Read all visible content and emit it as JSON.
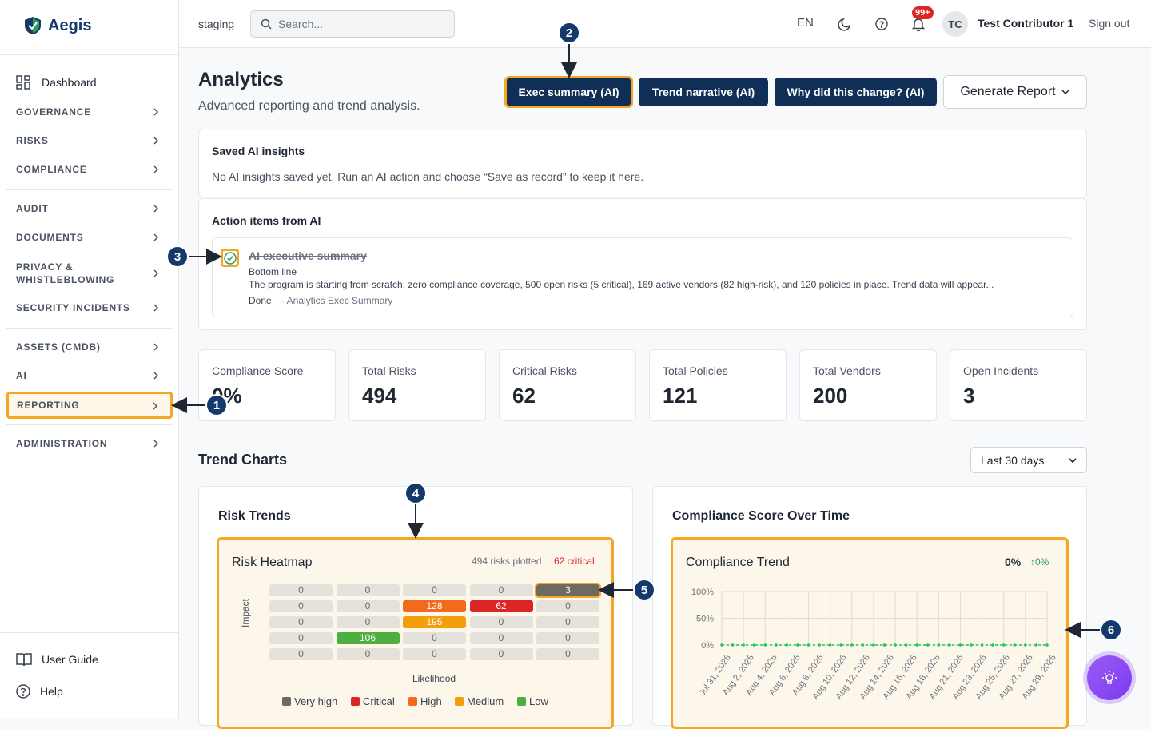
{
  "app": {
    "name": "Aegis"
  },
  "sidebar": {
    "dashboard": "Dashboard",
    "items": [
      "GOVERNANCE",
      "RISKS",
      "COMPLIANCE",
      "AUDIT",
      "DOCUMENTS",
      "PRIVACY &",
      "WHISTLEBLOWING",
      "SECURITY INCIDENTS",
      "ASSETS (CMDB)",
      "AI",
      "REPORTING",
      "ADMINISTRATION"
    ],
    "footer": {
      "guide": "User Guide",
      "help": "Help"
    }
  },
  "topbar": {
    "env": "staging",
    "search_placeholder": "Search...",
    "lang": "EN",
    "notif_count": "99+",
    "initials": "TC",
    "user": "Test Contributor 1",
    "signout": "Sign out"
  },
  "page": {
    "title": "Analytics",
    "subtitle": "Advanced reporting and trend analysis.",
    "buttons": {
      "exec": "Exec summary (AI)",
      "trend": "Trend narrative (AI)",
      "why": "Why did this change? (AI)",
      "generate": "Generate Report"
    }
  },
  "saved": {
    "title": "Saved AI insights",
    "empty": "No AI insights saved yet. Run an AI action and choose “Save as record” to keep it here."
  },
  "actions": {
    "title": "Action items from AI",
    "item_title": "AI executive summary",
    "item_sub": "Bottom line",
    "item_body": "The program is starting from scratch: zero compliance coverage, 500 open risks (5 critical), 169 active vendors (82 high-risk), and 120 policies in place. Trend data will appear...",
    "status": "Done",
    "source": "· Analytics Exec Summary"
  },
  "stats": [
    {
      "label": "Compliance Score",
      "value": "0%"
    },
    {
      "label": "Total Risks",
      "value": "494"
    },
    {
      "label": "Critical Risks",
      "value": "62"
    },
    {
      "label": "Total Policies",
      "value": "121"
    },
    {
      "label": "Total Vendors",
      "value": "200"
    },
    {
      "label": "Open Incidents",
      "value": "3"
    }
  ],
  "trends": {
    "title": "Trend Charts",
    "range": "Last 30 days"
  },
  "risk_panel": {
    "title": "Risk Trends",
    "heatmap_title": "Risk Heatmap",
    "plotted": "494 risks plotted",
    "critical": "62 critical",
    "ylabel": "Impact",
    "xlabel": "Likelihood",
    "legend": [
      "Very high",
      "Critical",
      "High",
      "Medium",
      "Low"
    ],
    "colors": {
      "very_high": "#6f6a60",
      "critical": "#dc2626",
      "high": "#f26b1d",
      "medium": "#f59e0b",
      "low": "#4caf3f"
    }
  },
  "compliance_panel": {
    "title": "Compliance Score Over Time",
    "chart_title": "Compliance Trend",
    "value": "0%",
    "delta": "↑0%",
    "yticks": [
      "100%",
      "50%",
      "0%"
    ],
    "xticks": [
      "Jul 31, 2026",
      "Aug 2, 2026",
      "Aug 4, 2026",
      "Aug 6, 2026",
      "Aug 8, 2026",
      "Aug 10, 2026",
      "Aug 12, 2026",
      "Aug 14, 2026",
      "Aug 16, 2026",
      "Aug 18, 2026",
      "Aug 21, 2026",
      "Aug 23, 2026",
      "Aug 25, 2026",
      "Aug 27, 2026",
      "Aug 29, 2026"
    ]
  },
  "chart_data": [
    {
      "type": "heatmap",
      "title": "Risk Heatmap",
      "xlabel": "Likelihood",
      "ylabel": "Impact",
      "values": [
        [
          0,
          0,
          0,
          0,
          3
        ],
        [
          0,
          0,
          128,
          62,
          0
        ],
        [
          0,
          0,
          195,
          0,
          0
        ],
        [
          0,
          106,
          0,
          0,
          0
        ],
        [
          0,
          0,
          0,
          0,
          0
        ]
      ],
      "cell_levels": [
        [
          "",
          "",
          "",
          "",
          "very_high"
        ],
        [
          "",
          "",
          "high",
          "critical",
          ""
        ],
        [
          "",
          "",
          "medium",
          "",
          ""
        ],
        [
          "",
          "low",
          "",
          "",
          ""
        ],
        [
          "",
          "",
          "",
          "",
          ""
        ]
      ]
    },
    {
      "type": "line",
      "title": "Compliance Trend",
      "ylim": [
        0,
        100
      ],
      "series": [
        {
          "values": [
            0,
            0,
            0,
            0,
            0,
            0,
            0,
            0,
            0,
            0,
            0,
            0,
            0,
            0,
            0,
            0,
            0,
            0,
            0,
            0,
            0,
            0,
            0,
            0,
            0,
            0,
            0,
            0,
            0,
            0,
            0
          ]
        }
      ]
    }
  ],
  "callouts": [
    "1",
    "2",
    "3",
    "4",
    "5",
    "6"
  ]
}
